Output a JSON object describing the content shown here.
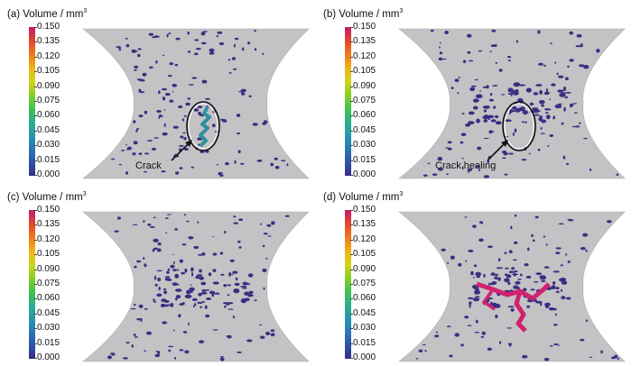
{
  "colorbar": {
    "title": "Volume / mm",
    "title_superscript": "3",
    "ticks": [
      "0.150",
      "0.135",
      "0.120",
      "0.105",
      "0.090",
      "0.075",
      "0.060",
      "0.045",
      "0.030",
      "0.015",
      "0.000"
    ]
  },
  "panels": [
    {
      "label": "(a)",
      "annotation": "Crack"
    },
    {
      "label": "(b)",
      "annotation": "Crack healing"
    },
    {
      "label": "(c)",
      "annotation": ""
    },
    {
      "label": "(d)",
      "annotation": ""
    }
  ],
  "colors": {
    "specimen": "#c4c2c4",
    "pore": "#3a2e82",
    "crack_teal": "#2f8f9e",
    "crack_magenta": "#d0226f"
  }
}
